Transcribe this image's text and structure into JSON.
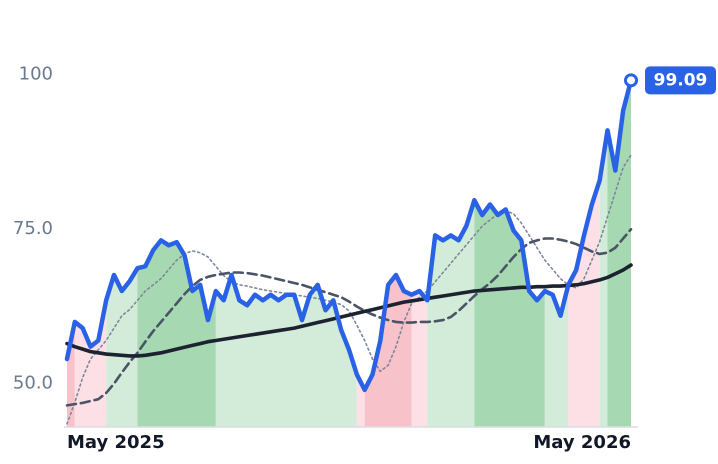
{
  "chart_data": {
    "type": "line",
    "categories": [
      "May 2025",
      null,
      null,
      null,
      null,
      null,
      null,
      null,
      null,
      null,
      null,
      null,
      null,
      null,
      null,
      null,
      null,
      null,
      null,
      null,
      null,
      null,
      null,
      null,
      null,
      null,
      null,
      null,
      null,
      null,
      null,
      null,
      null,
      null,
      null,
      null,
      null,
      null,
      null,
      null,
      null,
      null,
      null,
      null,
      null,
      null,
      null,
      null,
      null,
      null,
      null,
      null,
      null,
      null,
      null,
      null,
      null,
      null,
      null,
      null,
      null,
      null,
      null,
      null,
      null,
      null,
      null,
      null,
      null,
      null,
      null,
      null,
      "May 2026"
    ],
    "series": [
      {
        "color": "#2a62e6",
        "values": [
          54,
          60,
          59,
          56,
          57,
          63.5,
          67.6,
          65,
          66.6,
          68.7,
          69,
          71.6,
          73.2,
          72.4,
          72.9,
          70.8,
          65,
          66,
          60.3,
          65,
          63.5,
          67.6,
          63.5,
          62.7,
          64.4,
          63.5,
          64.4,
          63.5,
          64.4,
          64.4,
          60.3,
          64.4,
          66,
          61.9,
          63.5,
          58.7,
          55.5,
          51.5,
          49,
          51.5,
          57,
          66,
          67.6,
          65,
          64.4,
          65,
          63.5,
          74,
          73.2,
          74,
          73.2,
          75.6,
          79.7,
          77.3,
          79,
          77.3,
          78.2,
          74.8,
          73.2,
          65,
          63.5,
          65,
          64.4,
          61,
          66,
          68.4,
          74,
          79,
          82.9,
          91,
          84.5,
          94.2,
          99.09
        ]
      },
      {
        "color": "#7c8899",
        "values": [
          43.5,
          47,
          51,
          54,
          55.5,
          57,
          59,
          61,
          62,
          63.5,
          65,
          66,
          67,
          68.5,
          70,
          71,
          71.5,
          71.2,
          70.5,
          69,
          67.5,
          66.5,
          66,
          65.8,
          65.5,
          65.2,
          65,
          64.8,
          64.6,
          64.4,
          64.2,
          64,
          63.8,
          63.5,
          63.2,
          62.8,
          61.8,
          59.5,
          57,
          54,
          52,
          53,
          56,
          60,
          63,
          64,
          65,
          66.5,
          68,
          69.5,
          71,
          72.5,
          74,
          75.5,
          76.5,
          77.5,
          78,
          77.5,
          76,
          74,
          72,
          70,
          68.5,
          67,
          66,
          65.5,
          67,
          70,
          73,
          77,
          81,
          85,
          87
        ]
      },
      {
        "color": "#4a5466",
        "values": [
          46.5,
          46.7,
          46.9,
          47.2,
          47.5,
          48.5,
          50,
          51.8,
          53.5,
          55,
          56.8,
          58.5,
          60,
          61.5,
          63,
          64.5,
          65.8,
          66.8,
          67.3,
          67.6,
          67.8,
          68,
          68,
          67.9,
          67.7,
          67.5,
          67.2,
          66.9,
          66.6,
          66.3,
          66,
          65.6,
          65.2,
          64.8,
          64.4,
          64,
          63.3,
          62.5,
          61.8,
          61.2,
          60.7,
          60.3,
          60,
          59.9,
          59.9,
          60,
          60,
          60.1,
          60.3,
          60.8,
          61.8,
          63,
          64.2,
          65.3,
          66.3,
          67.5,
          69,
          70.5,
          71.8,
          72.8,
          73.2,
          73.5,
          73.5,
          73.3,
          73,
          72.6,
          72,
          71.4,
          71,
          71.2,
          72,
          73.5,
          75
        ]
      },
      {
        "color": "#1c2230",
        "values": [
          56.5,
          56,
          55.6,
          55.2,
          55,
          54.8,
          54.7,
          54.6,
          54.5,
          54.5,
          54.6,
          54.8,
          55,
          55.3,
          55.6,
          55.9,
          56.2,
          56.5,
          56.8,
          57,
          57.2,
          57.4,
          57.6,
          57.8,
          58,
          58.2,
          58.4,
          58.6,
          58.8,
          59,
          59.3,
          59.6,
          59.9,
          60.2,
          60.5,
          60.8,
          61.1,
          61.4,
          61.7,
          62,
          62.3,
          62.6,
          62.9,
          63.2,
          63.4,
          63.6,
          63.8,
          64,
          64.2,
          64.4,
          64.6,
          64.8,
          65,
          65.1,
          65.2,
          65.3,
          65.4,
          65.5,
          65.6,
          65.6,
          65.7,
          65.7,
          65.8,
          65.8,
          65.9,
          66,
          66.2,
          66.5,
          66.8,
          67.2,
          67.8,
          68.4,
          69.2
        ]
      }
    ],
    "bands": [
      {
        "from": 0,
        "to": 1,
        "color": "#f8c2cb"
      },
      {
        "from": 1,
        "to": 5,
        "color": "#fde0e5"
      },
      {
        "from": 5,
        "to": 9,
        "color": "#d3ecd9"
      },
      {
        "from": 9,
        "to": 19,
        "color": "#a6d9b2"
      },
      {
        "from": 19,
        "to": 37,
        "color": "#d3ecd9"
      },
      {
        "from": 37,
        "to": 38,
        "color": "#fde0e5"
      },
      {
        "from": 38,
        "to": 44,
        "color": "#f8c2cb"
      },
      {
        "from": 44,
        "to": 46,
        "color": "#fde0e5"
      },
      {
        "from": 46,
        "to": 52,
        "color": "#d3ecd9"
      },
      {
        "from": 52,
        "to": 61,
        "color": "#a6d9b2"
      },
      {
        "from": 61,
        "to": 64,
        "color": "#d3ecd9"
      },
      {
        "from": 64,
        "to": 68,
        "color": "#fde0e5"
      },
      {
        "from": 68,
        "to": 69,
        "color": "#d3ecd9"
      },
      {
        "from": 69,
        "to": 72,
        "color": "#a6d9b2"
      }
    ],
    "ylim": [
      43,
      104
    ],
    "yticks": [
      50,
      {
        "value": 75,
        "label": "75.0"
      },
      100
    ],
    "yticks_first_label": "50.0"
  }
}
